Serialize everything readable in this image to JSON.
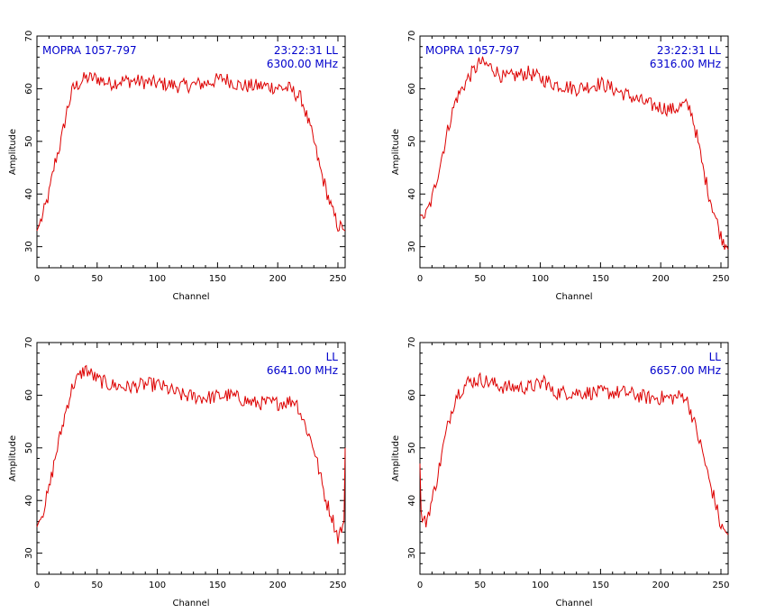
{
  "colors": {
    "trace": "#dd0000",
    "annotation": "#0000cc",
    "axes": "#000000",
    "background": "#ffffff"
  },
  "chart_data": [
    {
      "type": "line",
      "source_label": "MOPRA 1057-797",
      "time": "23:22:31",
      "polarization": "LL",
      "frequency": "6300.00 MHz",
      "xlabel": "Channel",
      "ylabel": "Amplitude",
      "xlim": [
        0,
        256
      ],
      "ylim": [
        26,
        70
      ],
      "xticks": [
        0,
        50,
        100,
        150,
        200,
        250
      ],
      "yticks": [
        30,
        40,
        50,
        60,
        70
      ],
      "grid": false,
      "series": [
        {
          "values_channel": [
            0,
            5,
            10,
            15,
            20,
            25,
            30,
            35,
            40,
            50,
            60,
            70,
            80,
            100,
            120,
            140,
            155,
            170,
            190,
            210,
            220,
            225,
            230,
            235,
            240,
            245,
            250,
            256
          ],
          "values": [
            33,
            36,
            40,
            46,
            50,
            56,
            60,
            61,
            62,
            62,
            61,
            61.5,
            61.5,
            61,
            60.5,
            61,
            62,
            60.5,
            60.5,
            60,
            58,
            54,
            50,
            45,
            41,
            37,
            34,
            33
          ]
        }
      ]
    },
    {
      "type": "line",
      "source_label": "MOPRA 1057-797",
      "time": "23:22:31",
      "polarization": "LL",
      "frequency": "6316.00 MHz",
      "xlabel": "Channel",
      "ylabel": "Amplitude",
      "xlim": [
        0,
        256
      ],
      "ylim": [
        26,
        70
      ],
      "xticks": [
        0,
        50,
        100,
        150,
        200,
        250
      ],
      "yticks": [
        30,
        40,
        50,
        60,
        70
      ],
      "grid": false,
      "series": [
        {
          "values_channel": [
            0,
            5,
            10,
            15,
            20,
            25,
            30,
            40,
            50,
            60,
            70,
            90,
            110,
            130,
            150,
            170,
            190,
            210,
            220,
            225,
            230,
            235,
            240,
            245,
            250,
            256
          ],
          "values": [
            36,
            36,
            39,
            44,
            49,
            54,
            58,
            62,
            65,
            64,
            62,
            63,
            61,
            60,
            61,
            59,
            57,
            56,
            57,
            56,
            51,
            45,
            40,
            36,
            32,
            29.5
          ]
        }
      ]
    },
    {
      "type": "line",
      "polarization": "LL",
      "frequency": "6641.00 MHz",
      "xlabel": "Channel",
      "ylabel": "Amplitude",
      "xlim": [
        0,
        256
      ],
      "ylim": [
        26,
        70
      ],
      "xticks": [
        0,
        50,
        100,
        150,
        200,
        250
      ],
      "yticks": [
        30,
        40,
        50,
        60,
        70
      ],
      "grid": false,
      "series": [
        {
          "values_channel": [
            0,
            5,
            10,
            15,
            20,
            25,
            30,
            40,
            50,
            60,
            75,
            90,
            100,
            120,
            140,
            160,
            180,
            200,
            215,
            220,
            225,
            230,
            235,
            240,
            245,
            250,
            255,
            256
          ],
          "values": [
            35,
            38,
            42,
            48,
            53,
            58,
            62,
            65,
            63,
            62,
            61.5,
            62,
            62,
            60,
            59.5,
            60,
            58.5,
            58.5,
            59,
            56,
            53,
            50,
            45,
            40,
            37,
            33,
            36,
            50
          ]
        }
      ]
    },
    {
      "type": "line",
      "polarization": "LL",
      "frequency": "6657.00 MHz",
      "xlabel": "Channel",
      "ylabel": "Amplitude",
      "xlim": [
        0,
        256
      ],
      "ylim": [
        26,
        70
      ],
      "xticks": [
        0,
        50,
        100,
        150,
        200,
        250
      ],
      "yticks": [
        30,
        40,
        50,
        60,
        70
      ],
      "grid": false,
      "series": [
        {
          "values_channel": [
            0,
            1,
            2,
            5,
            10,
            15,
            20,
            25,
            30,
            40,
            50,
            70,
            90,
            100,
            103,
            110,
            130,
            150,
            170,
            190,
            210,
            220,
            225,
            230,
            235,
            240,
            245,
            250,
            256
          ],
          "values": [
            47,
            38,
            36,
            36,
            40,
            45,
            51,
            56,
            60,
            62.5,
            63,
            61.5,
            61.5,
            62,
            63,
            60.5,
            60.5,
            60.5,
            60.5,
            59.5,
            59.5,
            60,
            57,
            53,
            49,
            44,
            40,
            35,
            33.5
          ]
        }
      ]
    }
  ]
}
